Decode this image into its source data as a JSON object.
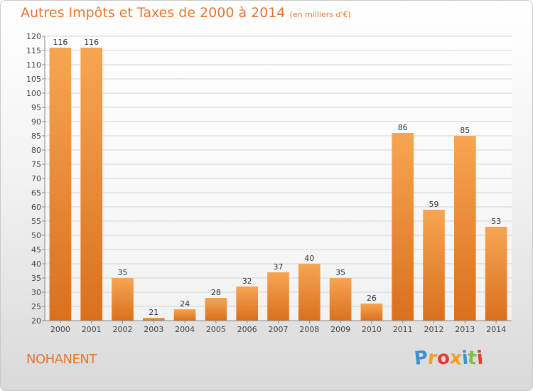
{
  "chart_data": {
    "type": "bar",
    "title": "Autres Impôts et Taxes de 2000 à 2014",
    "subtitle": "(en milliers d'€)",
    "categories": [
      "2000",
      "2001",
      "2002",
      "2003",
      "2004",
      "2005",
      "2006",
      "2007",
      "2008",
      "2009",
      "2010",
      "2011",
      "2012",
      "2013",
      "2014"
    ],
    "values": [
      116,
      116,
      35,
      21,
      24,
      28,
      32,
      37,
      40,
      35,
      26,
      86,
      59,
      85,
      53
    ],
    "ylim": [
      20,
      120
    ],
    "yticks": [
      20,
      25,
      30,
      35,
      40,
      45,
      50,
      55,
      60,
      65,
      70,
      75,
      80,
      85,
      90,
      95,
      100,
      105,
      110,
      115,
      120
    ],
    "grid": true,
    "bar_color_top": "#f7a552",
    "bar_color_bottom": "#d9701e"
  },
  "place_name": "NOHANENT",
  "logo": {
    "letters": [
      "P",
      "r",
      "o",
      "x",
      "i",
      "t",
      "i"
    ],
    "colors": [
      "#3d8fd6",
      "#f2a01e",
      "#e83a2c",
      "#f2a01e",
      "#3d8fd6",
      "#7cc143",
      "#e83a2c"
    ]
  }
}
